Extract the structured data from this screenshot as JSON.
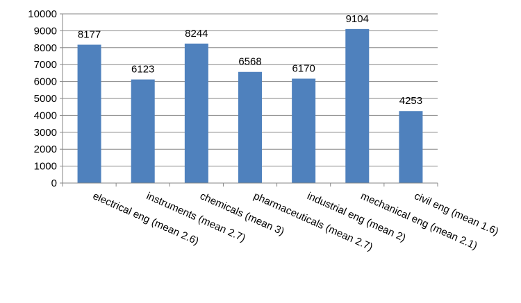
{
  "chart_data": {
    "type": "bar",
    "categories": [
      "electrical eng (mean 2.6)",
      "instruments (mean 2.7)",
      "chemicals (mean 3)",
      "pharmaceuticals (mean 2.7)",
      "industrial eng (mean 2)",
      "mechanical eng (mean 2.1)",
      "civil eng (mean 1.6)"
    ],
    "values": [
      8177,
      6123,
      8244,
      6568,
      6170,
      9104,
      4253
    ],
    "data_labels": [
      "8177",
      "6123",
      "8244",
      "6568",
      "6170",
      "9104",
      "4253"
    ],
    "y_ticks": [
      "0",
      "1000",
      "2000",
      "3000",
      "4000",
      "5000",
      "6000",
      "7000",
      "8000",
      "9000",
      "10000"
    ],
    "ylim": [
      0,
      10000
    ],
    "grid": true,
    "legend": "none",
    "title": "",
    "xlabel": "",
    "ylabel": "",
    "bar_color": "#4f81bd",
    "grid_color": "#868686",
    "axis_color": "#868686"
  }
}
